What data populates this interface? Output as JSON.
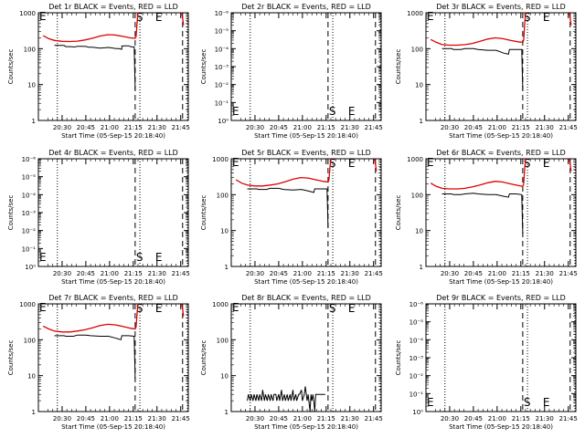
{
  "colors": {
    "events": "#000000",
    "lld": "#dd0000",
    "background": "#ffffff"
  },
  "chart_data": [
    {
      "type": "line",
      "title": "Det 1r BLACK = Events, RED = LLD",
      "ylabel": "Counts/sec",
      "xlabel": "Start Time (05-Sep-15 20:18:40)",
      "scale": "log",
      "ylim": [
        1,
        1000
      ],
      "yticks": [
        "1",
        "10",
        "100",
        "1000"
      ],
      "xticks": [
        "20:30",
        "20:45",
        "21:00",
        "21:15",
        "21:30",
        "21:45"
      ],
      "markers": {
        "S": "S",
        "E": "E"
      },
      "series": [
        {
          "label": "Events",
          "color_key": "events",
          "x": [
            20.21,
            20.36,
            20.42,
            20.52,
            20.54,
            20.59,
            20.62,
            20.64,
            20.66,
            20.7,
            20.75,
            20.78,
            20.8,
            20.82,
            20.9,
            20.99,
            21.07,
            21.1,
            21.12,
            21.13,
            21.13,
            21.17,
            21.2,
            21.23,
            21.26,
            21.27,
            21.27,
            21.28,
            21.3
          ],
          "y": [
            null,
            null,
            123,
            123,
            114,
            114,
            112,
            112,
            117,
            117,
            115,
            110,
            110,
            110,
            104,
            108,
            100,
            100,
            97,
            97,
            119,
            120,
            120,
            112,
            112,
            7,
            null,
            null,
            null
          ]
        },
        {
          "label": "LLD",
          "color_key": "lld",
          "x": [
            20.3,
            20.36,
            20.42,
            20.5,
            20.58,
            20.66,
            20.74,
            20.82,
            20.9,
            20.98,
            21.06,
            21.14,
            21.22,
            21.27,
            21.28,
            21.29,
            21.3,
            21.305
          ],
          "y": [
            230,
            190,
            170,
            160,
            158,
            162,
            175,
            195,
            225,
            245,
            240,
            220,
            200,
            195,
            220,
            500,
            1000,
            1000
          ]
        },
        {
          "label": "LLD tail",
          "color_key": "lld",
          "x": [
            21.76,
            21.77,
            21.78
          ],
          "y": [
            1000,
            700,
            450
          ]
        }
      ]
    },
    {
      "type": "line",
      "title": "Det 2r BLACK = Events, RED = LLD",
      "ylabel": "Counts/sec",
      "xlabel": "Start Time (05-Sep-15 20:18:40)",
      "scale": "log",
      "ylim": [
        1e-06,
        1.0
      ],
      "yticks": [
        "10⁰",
        "10⁻¹",
        "10⁻²",
        "10⁻³",
        "10⁻⁴",
        "10⁻⁵",
        "10⁻⁶"
      ],
      "xticks": [
        "20:30",
        "20:45",
        "21:00",
        "21:15",
        "21:30",
        "21:45"
      ],
      "markers": {
        "S": "S",
        "E": "E"
      },
      "series": []
    },
    {
      "type": "line",
      "title": "Det 3r BLACK = Events, RED = LLD",
      "ylabel": "Counts/sec",
      "xlabel": "Start Time (05-Sep-15 20:18:40)",
      "scale": "log",
      "ylim": [
        1,
        1000
      ],
      "yticks": [
        "1",
        "10",
        "100",
        "1000"
      ],
      "xticks": [
        "20:30",
        "20:45",
        "21:00",
        "21:15",
        "21:30",
        "21:45"
      ],
      "markers": {
        "S": "S",
        "E": "E"
      },
      "series": [
        {
          "label": "Events",
          "color_key": "events",
          "x": [
            20.42,
            20.52,
            20.54,
            20.62,
            20.66,
            20.75,
            20.8,
            20.9,
            20.99,
            21.07,
            21.12,
            21.13,
            21.2,
            21.26,
            21.27
          ],
          "y": [
            100,
            100,
            95,
            95,
            100,
            100,
            95,
            90,
            90,
            75,
            70,
            95,
            95,
            95,
            7
          ]
        },
        {
          "label": "LLD",
          "color_key": "lld",
          "x": [
            20.3,
            20.36,
            20.42,
            20.5,
            20.58,
            20.66,
            20.74,
            20.82,
            20.9,
            20.98,
            21.06,
            21.14,
            21.22,
            21.27,
            21.28,
            21.29,
            21.3,
            21.305
          ],
          "y": [
            180,
            150,
            130,
            125,
            125,
            130,
            140,
            160,
            185,
            200,
            190,
            170,
            155,
            150,
            175,
            450,
            1000,
            1000
          ]
        },
        {
          "label": "LLD tail",
          "color_key": "lld",
          "x": [
            21.76,
            21.77,
            21.78
          ],
          "y": [
            1000,
            700,
            450
          ]
        }
      ]
    },
    {
      "type": "line",
      "title": "Det 4r BLACK = Events, RED = LLD",
      "ylabel": "Counts/sec",
      "xlabel": "Start Time (05-Sep-15 20:18:40)",
      "scale": "log",
      "ylim": [
        1e-06,
        1.0
      ],
      "yticks": [
        "10⁰",
        "10⁻¹",
        "10⁻²",
        "10⁻³",
        "10⁻⁴",
        "10⁻⁵",
        "10⁻⁶"
      ],
      "xticks": [
        "20:30",
        "20:45",
        "21:00",
        "21:15",
        "21:30",
        "21:45"
      ],
      "markers": {
        "S": "S",
        "E": "E"
      },
      "series": []
    },
    {
      "type": "line",
      "title": "Det 5r BLACK = Events, RED = LLD",
      "ylabel": "Counts/sec",
      "xlabel": "Start Time (05-Sep-15 20:18:40)",
      "scale": "log",
      "ylim": [
        1,
        1000
      ],
      "yticks": [
        "1",
        "10",
        "100",
        "1000"
      ],
      "xticks": [
        "20:30",
        "20:45",
        "21:00",
        "21:15",
        "21:30",
        "21:45"
      ],
      "markers": {
        "S": "S",
        "E": "E"
      },
      "series": [
        {
          "label": "Events",
          "color_key": "events",
          "x": [
            20.42,
            20.52,
            20.54,
            20.62,
            20.66,
            20.75,
            20.8,
            20.9,
            20.99,
            21.07,
            21.12,
            21.13,
            21.2,
            21.26,
            21.27
          ],
          "y": [
            145,
            145,
            140,
            140,
            150,
            150,
            140,
            135,
            140,
            125,
            115,
            145,
            145,
            145,
            12
          ]
        },
        {
          "label": "LLD",
          "color_key": "lld",
          "x": [
            20.3,
            20.36,
            20.42,
            20.5,
            20.58,
            20.66,
            20.74,
            20.82,
            20.9,
            20.98,
            21.06,
            21.14,
            21.22,
            21.27,
            21.28,
            21.29,
            21.3,
            21.305
          ],
          "y": [
            260,
            210,
            185,
            175,
            175,
            185,
            200,
            230,
            270,
            300,
            290,
            260,
            235,
            225,
            260,
            550,
            1000,
            1000
          ]
        },
        {
          "label": "LLD tail",
          "color_key": "lld",
          "x": [
            21.76,
            21.77,
            21.78
          ],
          "y": [
            1000,
            700,
            450
          ]
        }
      ]
    },
    {
      "type": "line",
      "title": "Det 6r BLACK = Events, RED = LLD",
      "ylabel": "Counts/sec",
      "xlabel": "Start Time (05-Sep-15 20:18:40)",
      "scale": "log",
      "ylim": [
        1,
        1000
      ],
      "yticks": [
        "1",
        "10",
        "100",
        "1000"
      ],
      "xticks": [
        "20:30",
        "20:45",
        "21:00",
        "21:15",
        "21:30",
        "21:45"
      ],
      "markers": {
        "S": "S",
        "E": "E"
      },
      "series": [
        {
          "label": "Events",
          "color_key": "events",
          "x": [
            20.42,
            20.52,
            20.54,
            20.62,
            20.66,
            20.75,
            20.8,
            20.9,
            20.99,
            21.07,
            21.12,
            21.13,
            21.2,
            21.26,
            21.27
          ],
          "y": [
            105,
            105,
            100,
            100,
            105,
            110,
            105,
            100,
            100,
            90,
            85,
            105,
            105,
            100,
            8
          ]
        },
        {
          "label": "LLD",
          "color_key": "lld",
          "x": [
            20.3,
            20.36,
            20.42,
            20.5,
            20.58,
            20.66,
            20.74,
            20.82,
            20.9,
            20.98,
            21.06,
            21.14,
            21.22,
            21.27,
            21.28,
            21.29,
            21.3,
            21.305
          ],
          "y": [
            210,
            170,
            150,
            145,
            145,
            150,
            165,
            185,
            215,
            235,
            225,
            200,
            180,
            170,
            200,
            480,
            1000,
            1000
          ]
        },
        {
          "label": "LLD tail",
          "color_key": "lld",
          "x": [
            21.76,
            21.77,
            21.78
          ],
          "y": [
            1000,
            700,
            450
          ]
        }
      ]
    },
    {
      "type": "line",
      "title": "Det 7r BLACK = Events, RED = LLD",
      "ylabel": "Counts/sec",
      "xlabel": "Start Time (05-Sep-15 20:18:40)",
      "scale": "log",
      "ylim": [
        1,
        1000
      ],
      "yticks": [
        "1",
        "10",
        "100",
        "1000"
      ],
      "xticks": [
        "20:30",
        "20:45",
        "21:00",
        "21:15",
        "21:30",
        "21:45"
      ],
      "markers": {
        "S": "S",
        "E": "E"
      },
      "series": [
        {
          "label": "Events",
          "color_key": "events",
          "x": [
            20.42,
            20.52,
            20.54,
            20.62,
            20.66,
            20.75,
            20.8,
            20.9,
            20.99,
            21.07,
            21.12,
            21.13,
            21.2,
            21.26,
            21.27
          ],
          "y": [
            130,
            130,
            125,
            125,
            135,
            135,
            130,
            125,
            125,
            110,
            100,
            130,
            130,
            125,
            8
          ]
        },
        {
          "label": "LLD",
          "color_key": "lld",
          "x": [
            20.3,
            20.36,
            20.42,
            20.5,
            20.58,
            20.66,
            20.74,
            20.82,
            20.9,
            20.98,
            21.06,
            21.14,
            21.22,
            21.27,
            21.28,
            21.29,
            21.3,
            21.305
          ],
          "y": [
            240,
            200,
            175,
            165,
            165,
            175,
            190,
            215,
            250,
            270,
            260,
            235,
            210,
            200,
            230,
            520,
            1000,
            1000
          ]
        },
        {
          "label": "LLD tail",
          "color_key": "lld",
          "x": [
            21.76,
            21.77,
            21.78
          ],
          "y": [
            1000,
            700,
            450
          ]
        }
      ]
    },
    {
      "type": "line",
      "title": "Det 8r BLACK = Events, RED = LLD",
      "ylabel": "Counts/sec",
      "xlabel": "Start Time (05-Sep-15 20:18:40)",
      "scale": "log",
      "ylim": [
        1,
        1000
      ],
      "yticks": [
        "1",
        "10",
        "100",
        "1000"
      ],
      "xticks": [
        "20:30",
        "20:45",
        "21:00",
        "21:15",
        "21:30",
        "21:45"
      ],
      "markers": {
        "S": "S",
        "E": "E"
      },
      "series": [
        {
          "label": "Events",
          "color_key": "events",
          "x": [
            20.42,
            20.43,
            20.45,
            20.46,
            20.48,
            20.49,
            20.51,
            20.52,
            20.54,
            20.55,
            20.57,
            20.58,
            20.6,
            20.61,
            20.63,
            20.64,
            20.66,
            20.67,
            20.69,
            20.7,
            20.72,
            20.73,
            20.75,
            20.76,
            20.78,
            20.79,
            20.81,
            20.82,
            20.84,
            20.85,
            20.87,
            20.88,
            20.9,
            20.91,
            20.93,
            20.94,
            20.96,
            20.97,
            20.99,
            21.0,
            21.02,
            21.03,
            21.05,
            21.06,
            21.08,
            21.09,
            21.1,
            21.11,
            21.12,
            21.13,
            21.14,
            21.16,
            21.18,
            21.2,
            21.22,
            21.24
          ],
          "y": [
            2,
            3,
            2,
            3,
            2,
            3,
            2,
            3,
            2,
            3,
            2,
            4,
            2,
            3,
            2,
            3,
            2,
            3,
            2,
            3,
            3,
            2,
            3,
            2,
            4,
            2,
            3,
            2,
            3,
            2,
            3,
            2,
            4,
            2,
            3,
            2,
            3,
            3,
            4,
            2,
            3,
            5,
            2,
            3,
            1,
            3,
            2,
            3,
            2,
            1,
            3,
            3,
            3,
            3,
            3,
            3
          ]
        }
      ]
    },
    {
      "type": "line",
      "title": "Det 9r BLACK = Events, RED = LLD",
      "ylabel": "Counts/sec",
      "xlabel": "Start Time (05-Sep-15 20:18:40)",
      "scale": "log",
      "ylim": [
        1e-06,
        1.0
      ],
      "yticks": [
        "10⁰",
        "10⁻¹",
        "10⁻²",
        "10⁻³",
        "10⁻⁴",
        "10⁻⁵",
        "10⁻⁶"
      ],
      "xticks": [
        "20:30",
        "20:45",
        "21:00",
        "21:15",
        "21:30",
        "21:45"
      ],
      "markers": {
        "S": "S",
        "E": "E"
      },
      "series": []
    }
  ]
}
